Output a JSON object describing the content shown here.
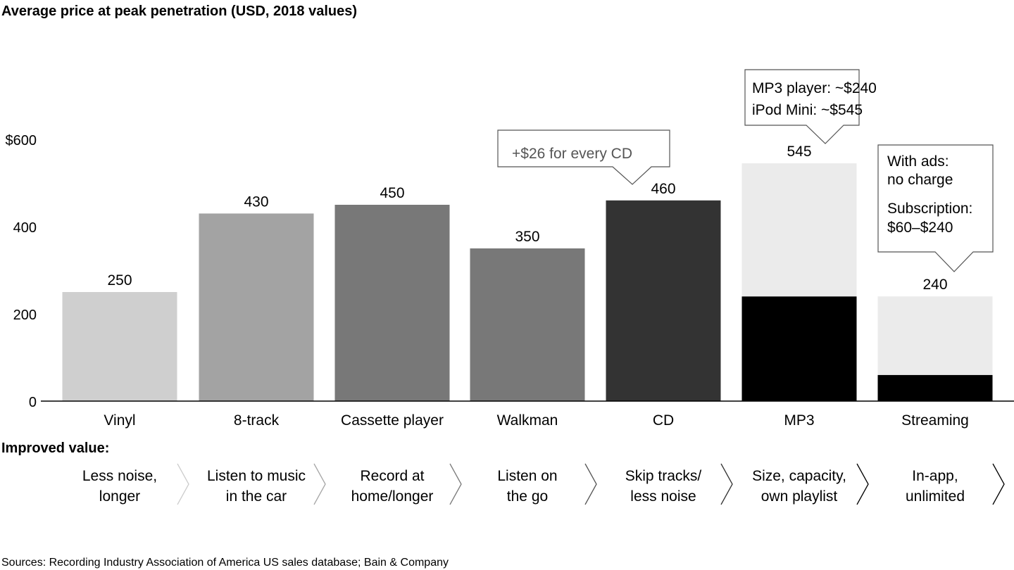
{
  "chart_data": {
    "type": "bar",
    "title": "Average price at peak penetration (USD, 2018 values)",
    "ylim": [
      0,
      600
    ],
    "yticks": [
      {
        "value": 0,
        "label": "0"
      },
      {
        "value": 200,
        "label": "200"
      },
      {
        "value": 400,
        "label": "400"
      },
      {
        "value": 600,
        "label": "$600"
      }
    ],
    "categories": [
      "Vinyl",
      "8-track",
      "Cassette player",
      "Walkman",
      "CD",
      "MP3",
      "Streaming"
    ],
    "values": [
      250,
      430,
      450,
      350,
      460,
      545,
      240
    ],
    "value_labels": [
      "250",
      "430",
      "450",
      "350",
      "460",
      "545",
      "240"
    ],
    "segments": [
      [
        {
          "from": 0,
          "to": 250,
          "color": "#cfcfcf"
        }
      ],
      [
        {
          "from": 0,
          "to": 430,
          "color": "#a3a3a3"
        }
      ],
      [
        {
          "from": 0,
          "to": 450,
          "color": "#787878"
        }
      ],
      [
        {
          "from": 0,
          "to": 350,
          "color": "#787878"
        }
      ],
      [
        {
          "from": 0,
          "to": 460,
          "color": "#333333"
        }
      ],
      [
        {
          "from": 0,
          "to": 240,
          "color": "#000000"
        },
        {
          "from": 240,
          "to": 545,
          "color": "#ebebeb"
        }
      ],
      [
        {
          "from": 0,
          "to": 60,
          "color": "#000000"
        },
        {
          "from": 60,
          "to": 240,
          "color": "#ebebeb"
        }
      ]
    ],
    "annotations": [
      {
        "target": "CD",
        "lines": [
          "+$26 for every CD"
        ],
        "color": "#555555"
      },
      {
        "target": "MP3",
        "lines": [
          "MP3 player: ~$240",
          "iPod Mini: ~$545"
        ],
        "color": "#000000"
      },
      {
        "target": "Streaming",
        "lines": [
          "With ads:",
          "no charge",
          "Subscription:",
          "$60–$240"
        ],
        "color": "#000000"
      }
    ],
    "improved_value_label": "Improved value:",
    "improved_values": [
      [
        "Less noise,",
        "longer"
      ],
      [
        "Listen to music",
        "in the car"
      ],
      [
        "Record at",
        "home/longer"
      ],
      [
        "Listen on",
        "the go"
      ],
      [
        "Skip tracks/",
        "less noise"
      ],
      [
        "Size, capacity,",
        "own playlist"
      ],
      [
        "In-app,",
        "unlimited"
      ]
    ],
    "chevron_colors": [
      "#cccccc",
      "#a6a6a6",
      "#7a7a7a",
      "#555555",
      "#333333",
      "#000000",
      "#000000"
    ],
    "source": "Sources: Recording Industry Association of America US sales database; Bain & Company"
  }
}
